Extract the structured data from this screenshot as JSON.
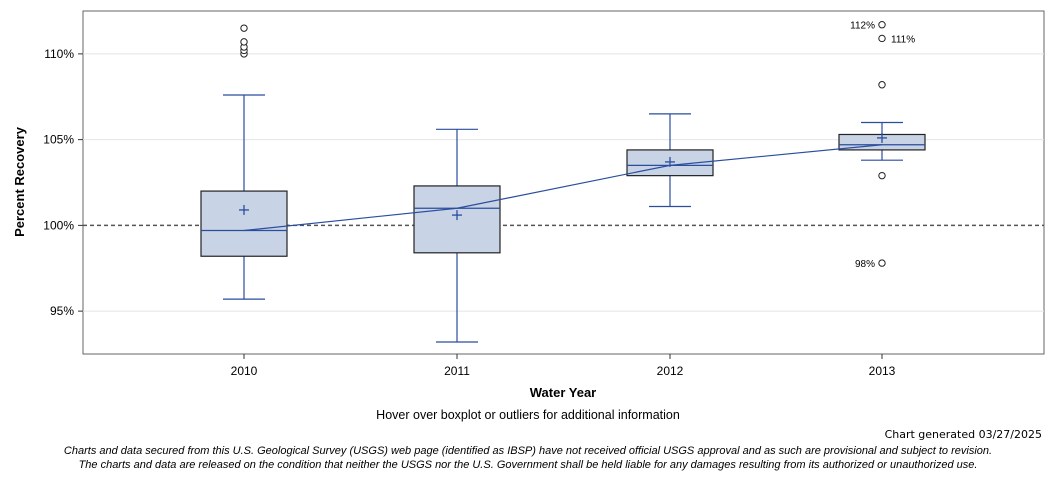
{
  "chart_data": {
    "type": "boxplot",
    "title": "",
    "xlabel": "Water Year",
    "ylabel": "Percent Recovery",
    "ylim": [
      92.5,
      112.5
    ],
    "yticks": [
      95,
      100,
      105,
      110
    ],
    "ytick_labels": [
      "95%",
      "100%",
      "105%",
      "110%"
    ],
    "reference_line": 100,
    "categories": [
      "2010",
      "2011",
      "2012",
      "2013"
    ],
    "boxes": [
      {
        "category": "2010",
        "whisker_low": 95.7,
        "q1": 98.2,
        "median": 99.7,
        "q3": 102.0,
        "whisker_high": 107.6,
        "mean": 100.9,
        "outliers": [
          {
            "value": 110.0,
            "label": ""
          },
          {
            "value": 110.2,
            "label": ""
          },
          {
            "value": 110.4,
            "label": ""
          },
          {
            "value": 110.7,
            "label": ""
          },
          {
            "value": 111.5,
            "label": ""
          }
        ]
      },
      {
        "category": "2011",
        "whisker_low": 93.2,
        "q1": 98.4,
        "median": 101.0,
        "q3": 102.3,
        "whisker_high": 105.6,
        "mean": 100.6,
        "outliers": []
      },
      {
        "category": "2012",
        "whisker_low": 101.1,
        "q1": 102.9,
        "median": 103.5,
        "q3": 104.4,
        "whisker_high": 106.5,
        "mean": 103.7,
        "outliers": []
      },
      {
        "category": "2013",
        "whisker_low": 103.8,
        "q1": 104.4,
        "median": 104.7,
        "q3": 105.3,
        "whisker_high": 106.0,
        "mean": 105.1,
        "outliers": [
          {
            "value": 111.7,
            "label": "112%"
          },
          {
            "value": 110.9,
            "label": "111%"
          },
          {
            "value": 108.2,
            "label": ""
          },
          {
            "value": 102.9,
            "label": ""
          },
          {
            "value": 97.8,
            "label": "98%"
          }
        ]
      }
    ],
    "colors": {
      "box_fill": "#c8d3e5",
      "box_stroke": "#222222",
      "line": "#2a4d9e",
      "reference": "#555555",
      "grid": "#e4e4e4"
    }
  },
  "notes": {
    "hover": "Hover over boxplot or outliers for additional information",
    "generated": "Chart generated 03/27/2025",
    "disclaimer_line1": "Charts and data secured from this U.S. Geological Survey (USGS) web page (identified as IBSP) have not received official USGS approval and as such are provisional and subject to revision.",
    "disclaimer_line2": "The charts and data are released on the condition that neither the USGS nor the U.S. Government shall be held liable for any damages resulting from its authorized or unauthorized use."
  }
}
